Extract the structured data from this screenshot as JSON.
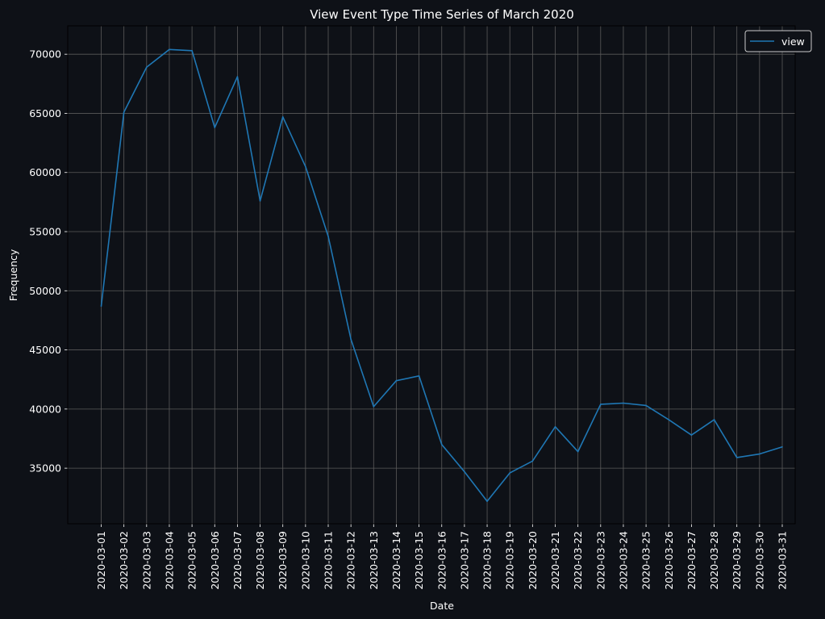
{
  "chart_data": {
    "type": "line",
    "title": "View Event Type Time Series of March 2020",
    "xlabel": "Date",
    "ylabel": "Frequency",
    "x": [
      "2020-03-01",
      "2020-03-02",
      "2020-03-03",
      "2020-03-04",
      "2020-03-05",
      "2020-03-06",
      "2020-03-07",
      "2020-03-08",
      "2020-03-09",
      "2020-03-10",
      "2020-03-11",
      "2020-03-12",
      "2020-03-13",
      "2020-03-14",
      "2020-03-15",
      "2020-03-16",
      "2020-03-17",
      "2020-03-18",
      "2020-03-19",
      "2020-03-20",
      "2020-03-21",
      "2020-03-22",
      "2020-03-23",
      "2020-03-24",
      "2020-03-25",
      "2020-03-26",
      "2020-03-27",
      "2020-03-28",
      "2020-03-29",
      "2020-03-30",
      "2020-03-31"
    ],
    "series": [
      {
        "name": "view",
        "color": "#1f77b4",
        "values": [
          48700,
          65100,
          68900,
          70400,
          70300,
          63800,
          68100,
          57600,
          64700,
          60500,
          54600,
          45900,
          40200,
          42400,
          42800,
          37000,
          34700,
          32200,
          34600,
          35600,
          38500,
          36400,
          40400,
          40500,
          40300,
          39100,
          37800,
          39100,
          35900,
          36200,
          36800
        ]
      }
    ],
    "yticks": [
      35000,
      40000,
      45000,
      50000,
      55000,
      60000,
      65000,
      70000
    ],
    "ylim": [
      30300,
      72400
    ],
    "grid": true,
    "legend_position": "top-right",
    "background": "#0e1117",
    "text_color": "#ffffff"
  }
}
